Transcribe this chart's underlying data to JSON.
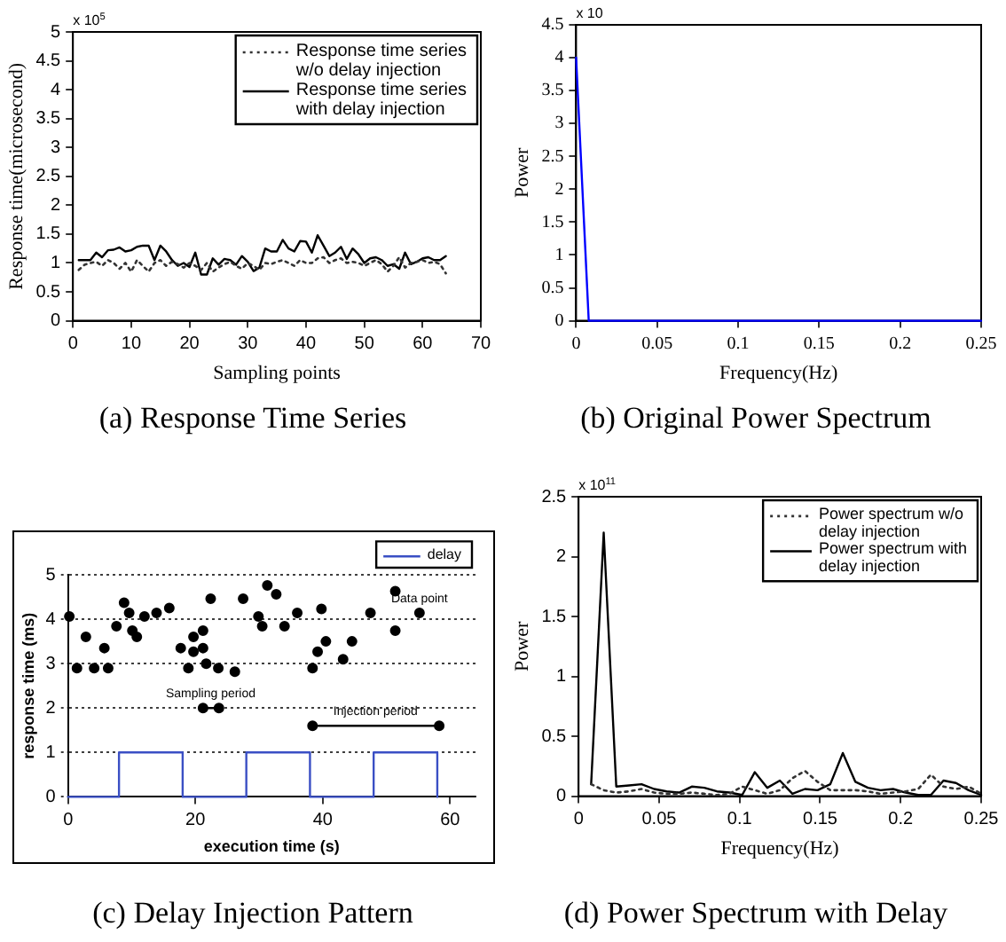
{
  "chart_data": [
    {
      "type": "line",
      "title": "(a) Response Time Series",
      "xlabel": "Sampling points",
      "ylabel": "Response time(microsecond)",
      "annotations": [
        "x 10$^{5}$"
      ],
      "xlim": [
        0,
        70
      ],
      "xticks": [
        0,
        10,
        20,
        30,
        40,
        50,
        60,
        70
      ],
      "ylim": [
        0,
        5
      ],
      "yticks": [
        0,
        0.5,
        1,
        1.5,
        2,
        2.5,
        3,
        3.5,
        4,
        4.5,
        5
      ],
      "legend": "top right",
      "x": [
        1,
        2,
        3,
        4,
        5,
        6,
        7,
        8,
        9,
        10,
        11,
        12,
        13,
        14,
        15,
        16,
        17,
        18,
        19,
        20,
        21,
        22,
        23,
        24,
        25,
        26,
        27,
        28,
        29,
        30,
        31,
        32,
        33,
        34,
        35,
        36,
        37,
        38,
        39,
        40,
        41,
        42,
        43,
        44,
        45,
        46,
        47,
        48,
        49,
        50,
        51,
        52,
        53,
        54,
        55,
        56,
        57,
        58,
        59,
        60,
        61,
        62,
        63,
        64
      ],
      "series": [
        {
          "name": "Response time series w/o delay injection",
          "color": "#333333",
          "line_style": "dotted",
          "values": [
            0.88,
            0.97,
            1.0,
            1.02,
            0.95,
            1.05,
            1.0,
            0.9,
            1.0,
            0.85,
            1.05,
            0.95,
            0.85,
            1.0,
            1.05,
            0.95,
            1.02,
            0.98,
            0.92,
            1.0,
            0.95,
            0.88,
            1.0,
            0.85,
            0.92,
            0.98,
            1.02,
            0.95,
            0.9,
            1.0,
            0.95,
            0.88,
            1.0,
            0.98,
            1.02,
            1.05,
            1.0,
            0.95,
            1.05,
            1.0,
            1.0,
            1.08,
            1.1,
            1.0,
            1.05,
            1.08,
            1.0,
            1.02,
            1.0,
            0.95,
            1.0,
            1.05,
            0.98,
            0.85,
            0.95,
            1.1,
            0.92,
            1.0,
            1.02,
            1.05,
            1.0,
            1.02,
            0.98,
            0.82
          ]
        },
        {
          "name": "Response time series with delay injection",
          "color": "#000000",
          "line_style": "solid",
          "values": [
            1.05,
            1.05,
            1.05,
            1.18,
            1.1,
            1.22,
            1.23,
            1.27,
            1.2,
            1.22,
            1.28,
            1.3,
            1.3,
            1.05,
            1.3,
            1.2,
            1.05,
            0.95,
            1.0,
            0.93,
            1.18,
            0.8,
            0.8,
            1.08,
            0.97,
            1.07,
            1.05,
            0.97,
            1.12,
            1.02,
            0.86,
            0.92,
            1.25,
            1.2,
            1.2,
            1.4,
            1.25,
            1.2,
            1.38,
            1.37,
            1.18,
            1.48,
            1.3,
            1.12,
            1.18,
            1.28,
            1.07,
            1.25,
            1.15,
            1.0,
            1.08,
            1.1,
            1.05,
            0.95,
            0.98,
            0.9,
            1.18,
            0.98,
            1.02,
            1.08,
            1.1,
            1.05,
            1.05,
            1.12
          ]
        }
      ]
    },
    {
      "type": "line",
      "title": "(b) Original Power Spectrum",
      "xlabel": "Frequency(Hz)",
      "ylabel": "Power",
      "annotations": [
        "x 10"
      ],
      "xlim": [
        0,
        0.25
      ],
      "xticks": [
        0,
        0.05,
        0.1,
        0.15,
        0.2,
        0.25
      ],
      "ylim": [
        0,
        4.5
      ],
      "yticks": [
        0,
        0.5,
        1,
        1.5,
        2,
        2.5,
        3,
        3.5,
        4,
        4.5
      ],
      "x": [
        0,
        0.0078,
        0.25
      ],
      "series": [
        {
          "color": "#0000ff",
          "values": [
            4,
            0,
            0
          ]
        }
      ]
    },
    {
      "type": "scatter",
      "title": "(c) Delay Injection Pattern",
      "xlabel": "execution time (s)",
      "ylabel": "response time (ms)",
      "xlim": [
        0,
        64
      ],
      "xticks": [
        0,
        20,
        40,
        60
      ],
      "ylim": [
        0,
        5
      ],
      "yticks": [
        0,
        1,
        2,
        3,
        4,
        5
      ],
      "grid": "y",
      "legend": "top right",
      "annotations": [
        {
          "text": "Sampling period",
          "x": 22.4,
          "y": 2
        },
        {
          "text": "Injection period",
          "x": 48.3,
          "y": 1.6
        },
        {
          "text": "Data point",
          "x": 55.2,
          "y": 4.14
        }
      ],
      "series": [
        {
          "type": "scatter",
          "color": "#000000",
          "marker": "circle",
          "x": [
            0.2,
            1.4,
            2.8,
            4.1,
            5.7,
            6.3,
            7.6,
            8.8,
            9.6,
            10.1,
            10.8,
            12.0,
            13.9,
            15.9,
            17.7,
            18.9,
            19.7,
            19.7,
            21.2,
            21.2,
            21.7,
            22.4,
            23.6,
            26.2,
            27.5,
            29.9,
            30.5,
            31.3,
            32.7,
            34.0,
            36.0,
            38.4,
            39.2,
            39.8,
            40.5,
            43.2,
            44.6,
            47.5,
            51.4,
            51.4,
            55.2
          ],
          "values": [
            4.06,
            2.9,
            3.6,
            2.9,
            3.35,
            2.9,
            3.84,
            4.37,
            4.14,
            3.74,
            3.6,
            4.06,
            4.14,
            4.25,
            3.35,
            2.9,
            3.6,
            3.27,
            3.74,
            3.35,
            3.0,
            4.46,
            2.9,
            2.82,
            4.46,
            4.06,
            3.84,
            4.76,
            4.56,
            3.84,
            4.14,
            2.9,
            3.27,
            4.23,
            3.5,
            3.1,
            3.5,
            4.14,
            4.63,
            3.74,
            4.14
          ]
        },
        {
          "type": "step",
          "name": "delay",
          "color": "#3a4fc4",
          "marker": "none",
          "x": [
            0,
            8,
            18,
            28,
            38,
            48,
            58
          ],
          "values": [
            0,
            1,
            0,
            1,
            0,
            1,
            0
          ]
        },
        {
          "type": "line",
          "color": "#000000",
          "marker": "circle",
          "x": [
            21.2,
            23.7
          ],
          "values": [
            2,
            2
          ]
        },
        {
          "type": "line",
          "color": "#000000",
          "marker": "circle",
          "x": [
            38.4,
            58.3
          ],
          "values": [
            1.6,
            1.6
          ]
        }
      ]
    },
    {
      "type": "line",
      "title": "(d) Power Spectrum with Delay",
      "xlabel": "Frequency(Hz)",
      "ylabel": "Power",
      "annotations": [
        "x 10$^{11}$"
      ],
      "xlim": [
        0,
        0.25
      ],
      "xticks": [
        0,
        0.05,
        0.1,
        0.15,
        0.2,
        0.25
      ],
      "ylim": [
        0,
        2.5
      ],
      "yticks": [
        0,
        0.5,
        1,
        1.5,
        2,
        2.5
      ],
      "legend": "top right",
      "x": [
        0.0078,
        0.0156,
        0.0234,
        0.0313,
        0.0391,
        0.0469,
        0.0547,
        0.0625,
        0.0703,
        0.0781,
        0.0859,
        0.0938,
        0.1016,
        0.1094,
        0.1172,
        0.125,
        0.1328,
        0.1406,
        0.1484,
        0.1563,
        0.1641,
        0.1719,
        0.1797,
        0.1875,
        0.1953,
        0.2031,
        0.2109,
        0.2188,
        0.2266,
        0.2344,
        0.2422,
        0.25
      ],
      "series": [
        {
          "name": "Power spectrum w/o delay injection",
          "color": "#333333",
          "line_style": "dotted",
          "values": [
            0.1,
            0.05,
            0.03,
            0.04,
            0.06,
            0.03,
            0.02,
            0.02,
            0.03,
            0.02,
            0.01,
            0.02,
            0.08,
            0.05,
            0.02,
            0.05,
            0.15,
            0.21,
            0.12,
            0.05,
            0.05,
            0.05,
            0.04,
            0.02,
            0.03,
            0.04,
            0.06,
            0.18,
            0.08,
            0.06,
            0.08,
            0.02
          ]
        },
        {
          "name": "Power spectrum with delay injection",
          "color": "#000000",
          "line_style": "solid",
          "values": [
            0.1,
            2.2,
            0.08,
            0.09,
            0.1,
            0.06,
            0.04,
            0.03,
            0.08,
            0.07,
            0.04,
            0.03,
            0.01,
            0.2,
            0.07,
            0.13,
            0.02,
            0.06,
            0.05,
            0.1,
            0.36,
            0.12,
            0.07,
            0.05,
            0.06,
            0.03,
            0.01,
            0.01,
            0.13,
            0.11,
            0.05,
            0.01
          ]
        }
      ]
    }
  ]
}
